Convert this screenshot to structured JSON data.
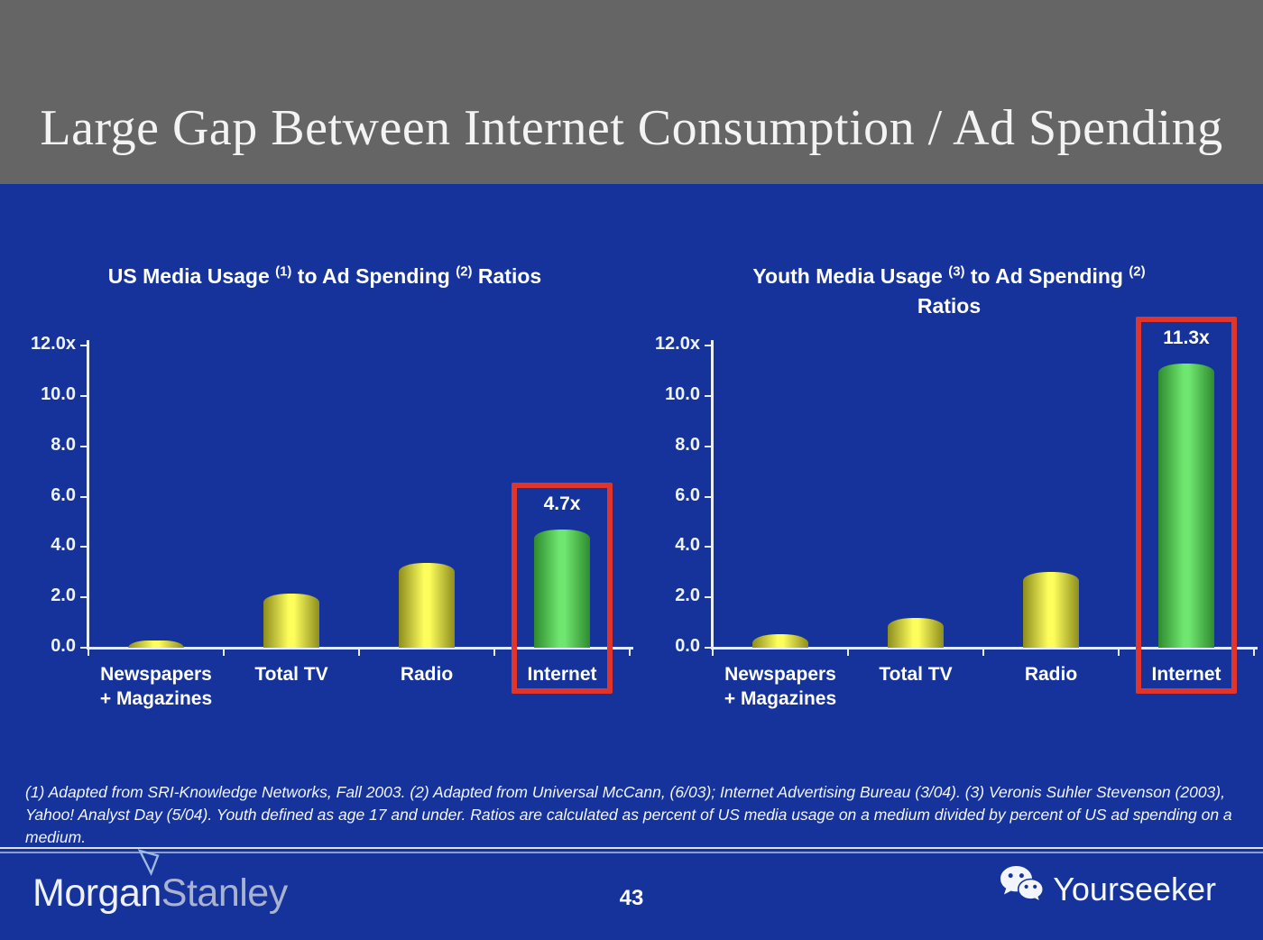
{
  "header": {
    "title": "Large Gap Between Internet Consumption / Ad Spending"
  },
  "chart_data": [
    {
      "type": "bar",
      "title_segments": [
        {
          "text": "US Media Usage "
        },
        {
          "sup": "(1)"
        },
        {
          "text": " to Ad Spending "
        },
        {
          "sup": "(2)"
        },
        {
          "text": " Ratios"
        }
      ],
      "title_plain": "US Media Usage (1) to Ad Spending (2) Ratios",
      "categories": [
        "Newspapers\n+ Magazines",
        "Total TV",
        "Radio",
        "Internet"
      ],
      "values": [
        0.3,
        2.15,
        3.35,
        4.7
      ],
      "bar_styles": [
        "yellow",
        "yellow",
        "yellow",
        "green"
      ],
      "value_labels": [
        null,
        null,
        null,
        "4.7x"
      ],
      "ytick_labels": [
        "12.0x",
        "10.0",
        "8.0",
        "6.0",
        "4.0",
        "2.0",
        "0.0"
      ],
      "ylim": [
        0,
        12
      ],
      "grid": false,
      "legend": "none",
      "highlight_index": 3,
      "highlight_color": "#e1342a"
    },
    {
      "type": "bar",
      "title_segments": [
        {
          "text": "Youth Media Usage "
        },
        {
          "sup": "(3)"
        },
        {
          "text": " to Ad Spending "
        },
        {
          "sup": "(2)"
        },
        {
          "br": true
        },
        {
          "text": "Ratios"
        }
      ],
      "title_plain": "Youth Media Usage (3) to Ad Spending (2) Ratios",
      "categories": [
        "Newspapers\n+ Magazines",
        "Total TV",
        "Radio",
        "Internet"
      ],
      "values": [
        0.55,
        1.2,
        3.0,
        11.3
      ],
      "bar_styles": [
        "yellow",
        "yellow",
        "yellow",
        "green"
      ],
      "value_labels": [
        null,
        null,
        null,
        "11.3x"
      ],
      "ytick_labels": [
        "12.0x",
        "10.0",
        "8.0",
        "6.0",
        "4.0",
        "2.0",
        "0.0"
      ],
      "ylim": [
        0,
        12
      ],
      "grid": false,
      "legend": "none",
      "highlight_index": 3,
      "highlight_color": "#e1342a"
    }
  ],
  "colors": {
    "background": "#15339b",
    "header_gray": "#666566",
    "axis": "#e8eefa",
    "bar_yellow_edge": "#8d8d1e",
    "bar_yellow_center": "#fdfd5c",
    "bar_green_edge": "#2e8b2e",
    "bar_green_center": "#6fe66f",
    "highlight_red": "#e1342a"
  },
  "footnote": {
    "text": "(1) Adapted from SRI-Knowledge Networks, Fall 2003.  (2) Adapted from Universal McCann, (6/03); Internet Advertising Bureau (3/04). (3) Veronis Suhler Stevenson (2003), Yahoo! Analyst Day (5/04).  Youth defined as age 17 and under.  Ratios are calculated as percent of US media usage on a medium divided by percent of US ad spending on a medium."
  },
  "footer": {
    "morgan": "Morgan",
    "stanley": "Stanley",
    "page_number": "43",
    "brand": "Yourseeker"
  },
  "icons": {
    "brand_icon": "wechat-chat-bubbles-icon",
    "logo_mark": "morgan-stanley-flag-icon"
  }
}
